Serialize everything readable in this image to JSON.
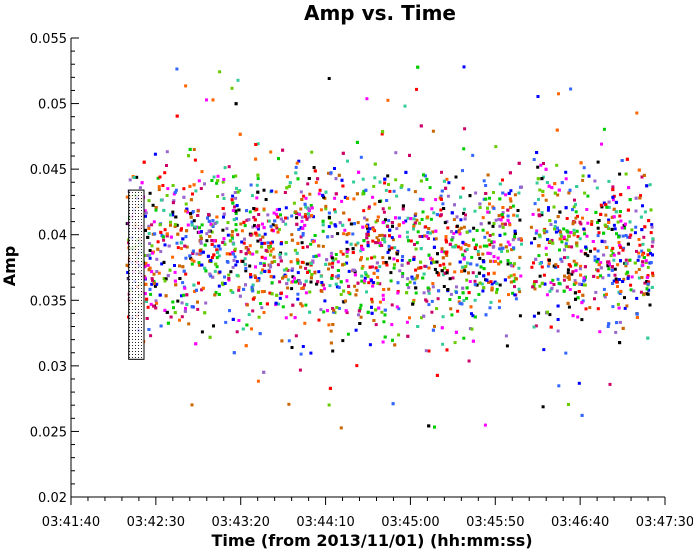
{
  "chart_data": {
    "type": "scatter",
    "title": "Amp vs. Time",
    "xlabel": "Time (from 2013/11/01) (hh:mm:ss)",
    "ylabel": "Amp",
    "xlim": [
      "03:41:40",
      "03:47:30"
    ],
    "ylim": [
      0.02,
      0.055
    ],
    "x_ticks": [
      "03:41:40",
      "03:42:30",
      "03:43:20",
      "03:44:10",
      "03:45:00",
      "03:45:50",
      "03:46:40",
      "03:47:30"
    ],
    "y_ticks": [
      "0.02",
      "0.025",
      "0.03",
      "0.035",
      "0.04",
      "0.045",
      "0.05",
      "0.055"
    ],
    "x_range_seconds": [
      0,
      350
    ],
    "data_span": {
      "x_start": "03:42:13",
      "x_end": "03:47:23",
      "gaps": [
        [
          "03:46:06",
          "03:46:11"
        ]
      ],
      "y_typical_range": [
        0.031,
        0.047
      ],
      "y_outlier_range": [
        0.025,
        0.053
      ]
    },
    "selection_box": {
      "x_range": [
        "03:42:14",
        "03:42:23"
      ],
      "y_range": [
        0.0305,
        0.0434
      ]
    },
    "series_colors": [
      "#0000ff",
      "#ff00ff",
      "#00cc00",
      "#ff0000",
      "#9966cc",
      "#cc6600",
      "#000000",
      "#33cc99",
      "#66cc00",
      "#cc0066",
      "#3366ff",
      "#ff6600"
    ],
    "grid": false,
    "legend": "none"
  }
}
